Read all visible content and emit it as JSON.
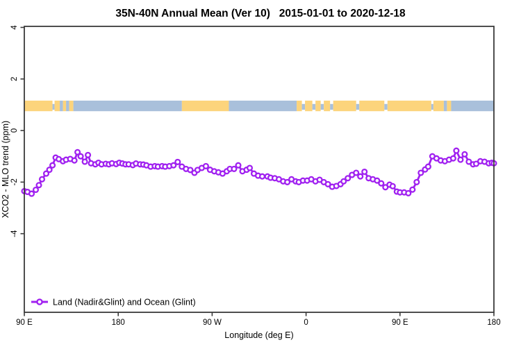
{
  "background": "#ffffff",
  "chart_data": {
    "type": "line",
    "title": "35N-40N Annual Mean (Ver 10)   2015-01-01 to 2020-12-18",
    "xlabel": "Longitude (deg E)",
    "ylabel": "XCO2 - MLO trend (ppm)",
    "xlim": [
      90,
      540
    ],
    "ylim": [
      -7.05,
      4.04
    ],
    "grid": false,
    "x_ticks": [
      {
        "pos": 90,
        "label": "90 E"
      },
      {
        "pos": 180,
        "label": "180"
      },
      {
        "pos": 270,
        "label": "90 W"
      },
      {
        "pos": 360,
        "label": "0"
      },
      {
        "pos": 450,
        "label": "90 E"
      },
      {
        "pos": 540,
        "label": "180"
      }
    ],
    "y_ticks": [
      {
        "pos": -4,
        "label": "-4"
      },
      {
        "pos": -2,
        "label": "-2"
      },
      {
        "pos": 0,
        "label": "0"
      },
      {
        "pos": 2,
        "label": "2"
      },
      {
        "pos": 4,
        "label": "4"
      }
    ],
    "legend": [
      {
        "label": "Land (Nadir&Glint) and Ocean (Glint)",
        "color": "#A020F0",
        "marker": "open-circle",
        "position": "bottom-left"
      }
    ],
    "colors": {
      "series": "#A020F0",
      "land": "#FCD47C",
      "ocean": "#A9C0DB",
      "axis": "#3A3A3A"
    },
    "surface_strip": {
      "name": "land-ocean surface type band",
      "y_range": [
        0.75,
        1.16
      ],
      "segments": [
        {
          "from": 90,
          "to": 117,
          "type": "land"
        },
        {
          "from": 117,
          "to": 119,
          "type": "ocean",
          "partial": true
        },
        {
          "from": 119,
          "to": 124,
          "type": "land"
        },
        {
          "from": 124,
          "to": 127,
          "type": "ocean"
        },
        {
          "from": 127,
          "to": 130,
          "type": "land"
        },
        {
          "from": 130,
          "to": 133,
          "type": "ocean"
        },
        {
          "from": 133,
          "to": 137,
          "type": "land"
        },
        {
          "from": 137,
          "to": 241,
          "type": "ocean"
        },
        {
          "from": 241,
          "to": 286,
          "type": "land"
        },
        {
          "from": 286,
          "to": 351,
          "type": "ocean"
        },
        {
          "from": 351,
          "to": 356,
          "type": "land"
        },
        {
          "from": 356,
          "to": 359,
          "type": "ocean",
          "partial": true
        },
        {
          "from": 359,
          "to": 366,
          "type": "land"
        },
        {
          "from": 366,
          "to": 369,
          "type": "ocean",
          "partial": true
        },
        {
          "from": 369,
          "to": 374,
          "type": "land"
        },
        {
          "from": 374,
          "to": 377,
          "type": "ocean",
          "partial": true
        },
        {
          "from": 377,
          "to": 383,
          "type": "land"
        },
        {
          "from": 383,
          "to": 386,
          "type": "ocean",
          "partial": true
        },
        {
          "from": 386,
          "to": 408,
          "type": "land"
        },
        {
          "from": 408,
          "to": 411,
          "type": "ocean",
          "partial": true
        },
        {
          "from": 411,
          "to": 435,
          "type": "land"
        },
        {
          "from": 435,
          "to": 438,
          "type": "ocean",
          "partial": true
        },
        {
          "from": 438,
          "to": 480,
          "type": "land"
        },
        {
          "from": 480,
          "to": 482,
          "type": "ocean",
          "partial": true
        },
        {
          "from": 482,
          "to": 492,
          "type": "land"
        },
        {
          "from": 492,
          "to": 495,
          "type": "ocean"
        },
        {
          "from": 495,
          "to": 499,
          "type": "land"
        },
        {
          "from": 499,
          "to": 540,
          "type": "ocean"
        }
      ]
    },
    "series": [
      {
        "name": "Land (Nadir&Glint) and Ocean (Glint)",
        "color": "#A020F0",
        "marker": "open-circle",
        "points": [
          [
            90,
            -2.35
          ],
          [
            93,
            -2.38
          ],
          [
            97,
            -2.45
          ],
          [
            101,
            -2.3
          ],
          [
            104,
            -2.12
          ],
          [
            107,
            -1.89
          ],
          [
            111,
            -1.67
          ],
          [
            114,
            -1.52
          ],
          [
            117,
            -1.35
          ],
          [
            120,
            -1.05
          ],
          [
            123,
            -1.11
          ],
          [
            127,
            -1.19
          ],
          [
            130,
            -1.13
          ],
          [
            134,
            -1.1
          ],
          [
            138,
            -1.16
          ],
          [
            141,
            -0.84
          ],
          [
            144,
            -1.0
          ],
          [
            148,
            -1.21
          ],
          [
            151,
            -0.95
          ],
          [
            154,
            -1.27
          ],
          [
            158,
            -1.31
          ],
          [
            161,
            -1.25
          ],
          [
            164,
            -1.31
          ],
          [
            168,
            -1.29
          ],
          [
            171,
            -1.31
          ],
          [
            174,
            -1.27
          ],
          [
            178,
            -1.3
          ],
          [
            181,
            -1.25
          ],
          [
            184,
            -1.28
          ],
          [
            187,
            -1.31
          ],
          [
            190,
            -1.31
          ],
          [
            194,
            -1.34
          ],
          [
            197,
            -1.28
          ],
          [
            201,
            -1.31
          ],
          [
            204,
            -1.32
          ],
          [
            207,
            -1.35
          ],
          [
            211,
            -1.4
          ],
          [
            215,
            -1.38
          ],
          [
            218,
            -1.4
          ],
          [
            222,
            -1.38
          ],
          [
            225,
            -1.4
          ],
          [
            229,
            -1.38
          ],
          [
            233,
            -1.35
          ],
          [
            237,
            -1.22
          ],
          [
            241,
            -1.4
          ],
          [
            245,
            -1.49
          ],
          [
            249,
            -1.53
          ],
          [
            253,
            -1.64
          ],
          [
            256,
            -1.53
          ],
          [
            260,
            -1.45
          ],
          [
            264,
            -1.38
          ],
          [
            268,
            -1.52
          ],
          [
            272,
            -1.58
          ],
          [
            276,
            -1.62
          ],
          [
            280,
            -1.67
          ],
          [
            284,
            -1.58
          ],
          [
            287,
            -1.49
          ],
          [
            291,
            -1.49
          ],
          [
            295,
            -1.35
          ],
          [
            299,
            -1.58
          ],
          [
            303,
            -1.52
          ],
          [
            306,
            -1.45
          ],
          [
            310,
            -1.67
          ],
          [
            314,
            -1.75
          ],
          [
            318,
            -1.78
          ],
          [
            323,
            -1.78
          ],
          [
            326,
            -1.83
          ],
          [
            330,
            -1.85
          ],
          [
            334,
            -1.89
          ],
          [
            338,
            -1.97
          ],
          [
            342,
            -2.0
          ],
          [
            346,
            -1.89
          ],
          [
            350,
            -1.97
          ],
          [
            353,
            -2.0
          ],
          [
            357,
            -1.94
          ],
          [
            361,
            -1.94
          ],
          [
            365,
            -1.89
          ],
          [
            369,
            -1.97
          ],
          [
            373,
            -1.91
          ],
          [
            377,
            -2.0
          ],
          [
            381,
            -2.08
          ],
          [
            385,
            -2.18
          ],
          [
            389,
            -2.15
          ],
          [
            393,
            -2.08
          ],
          [
            396,
            -1.97
          ],
          [
            400,
            -1.85
          ],
          [
            404,
            -1.72
          ],
          [
            408,
            -1.64
          ],
          [
            412,
            -1.78
          ],
          [
            416,
            -1.6
          ],
          [
            420,
            -1.85
          ],
          [
            424,
            -1.89
          ],
          [
            428,
            -1.94
          ],
          [
            432,
            -2.05
          ],
          [
            436,
            -2.2
          ],
          [
            440,
            -2.1
          ],
          [
            443,
            -2.16
          ],
          [
            447,
            -2.37
          ],
          [
            450,
            -2.4
          ],
          [
            454,
            -2.4
          ],
          [
            458,
            -2.43
          ],
          [
            462,
            -2.29
          ],
          [
            466,
            -2.0
          ],
          [
            470,
            -1.64
          ],
          [
            474,
            -1.51
          ],
          [
            477,
            -1.4
          ],
          [
            481,
            -1.0
          ],
          [
            485,
            -1.08
          ],
          [
            489,
            -1.16
          ],
          [
            493,
            -1.19
          ],
          [
            497,
            -1.13
          ],
          [
            501,
            -1.08
          ],
          [
            504,
            -0.78
          ],
          [
            508,
            -1.13
          ],
          [
            512,
            -0.92
          ],
          [
            516,
            -1.21
          ],
          [
            520,
            -1.31
          ],
          [
            523,
            -1.29
          ],
          [
            527,
            -1.19
          ],
          [
            531,
            -1.21
          ],
          [
            535,
            -1.27
          ],
          [
            538,
            -1.25
          ],
          [
            540,
            -1.27
          ]
        ]
      }
    ]
  }
}
